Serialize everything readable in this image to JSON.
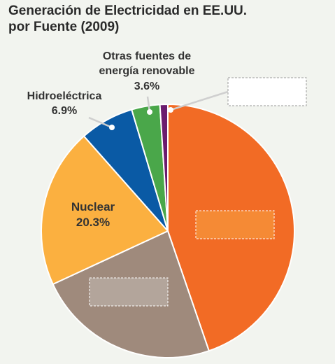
{
  "chart_data": {
    "type": "pie",
    "title": [
      "Generación de Electricidad en EE.UU.",
      "por Fuente (2009)"
    ],
    "slices": [
      {
        "label": "",
        "value": 44.6,
        "color": "#f26b25",
        "value_label": "",
        "blank_box": true
      },
      {
        "label": "",
        "value": 23.3,
        "color": "#9f8a7c",
        "value_label": "",
        "blank_box": true
      },
      {
        "label": "Nuclear",
        "value": 20.3,
        "color": "#fbb040",
        "value_label": "20.3%"
      },
      {
        "label": "Hidroeléctrica",
        "value": 6.9,
        "color": "#0a5aa5",
        "value_label": "6.9%"
      },
      {
        "label": "Otras fuentes de energía renovable",
        "value": 3.6,
        "color": "#4aa74a",
        "value_label": "3.6%"
      },
      {
        "label": "",
        "value": 1.0,
        "color": "#6b1c6e",
        "value_label": "",
        "blank_box": true
      }
    ]
  }
}
